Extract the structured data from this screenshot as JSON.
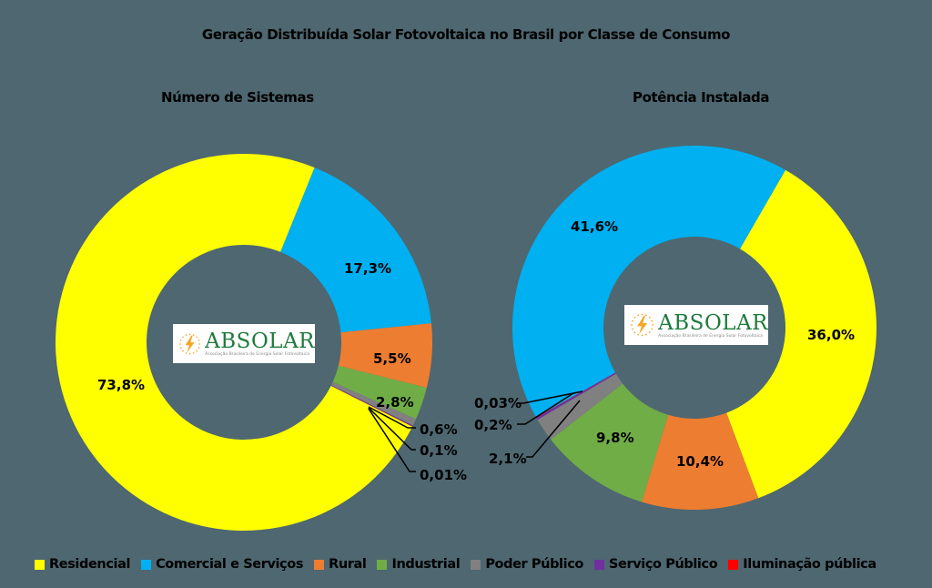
{
  "title": "Geração Distribuída Solar Fotovoltaica no Brasil por Classe de Consumo",
  "logo": {
    "brand": "ABSOLAR",
    "tagline": "Associação Brasileira de Energia Solar Fotovoltaica"
  },
  "background_color": "#4E6771",
  "categories": [
    "Residencial",
    "Comercial e Serviços",
    "Rural",
    "Industrial",
    "Poder Público",
    "Serviço Público",
    "Iluminação pública"
  ],
  "colors": {
    "Residencial": "#FFFF00",
    "Comercial e Serviços": "#00B0F0",
    "Rural": "#ED7D31",
    "Industrial": "#70AD47",
    "Poder Público": "#808080",
    "Serviço Público": "#7030A0",
    "Iluminação pública": "#FF0000"
  },
  "legend": {
    "position": "bottom",
    "items": [
      {
        "label": "Residencial",
        "color": "#FFFF00"
      },
      {
        "label": "Comercial e Serviços",
        "color": "#00B0F0"
      },
      {
        "label": "Rural",
        "color": "#ED7D31"
      },
      {
        "label": "Industrial",
        "color": "#70AD47"
      },
      {
        "label": "Poder Público",
        "color": "#808080"
      },
      {
        "label": "Serviço Público",
        "color": "#7030A0"
      },
      {
        "label": "Iluminação pública",
        "color": "#FF0000"
      }
    ]
  },
  "chart_data": [
    {
      "type": "pie",
      "subtype": "donut",
      "title": "Número de Sistemas",
      "categories": [
        "Residencial",
        "Comercial e Serviços",
        "Rural",
        "Industrial",
        "Poder Público",
        "Serviço Público",
        "Iluminação pública"
      ],
      "values": [
        73.8,
        17.3,
        5.5,
        2.8,
        0.6,
        0.1,
        0.01
      ],
      "labels": [
        "73,8%",
        "17,3%",
        "5,5%",
        "2,8%",
        "0,6%",
        "0,1%",
        "0,01%"
      ]
    },
    {
      "type": "pie",
      "subtype": "donut",
      "title": "Potência Instalada",
      "categories": [
        "Residencial",
        "Comercial e Serviços",
        "Rural",
        "Industrial",
        "Poder Público",
        "Serviço Público",
        "Iluminação pública"
      ],
      "values": [
        36.0,
        41.6,
        10.4,
        9.8,
        2.1,
        0.2,
        0.03
      ],
      "labels": [
        "36,0%",
        "41,6%",
        "10,4%",
        "9,8%",
        "2,1%",
        "0,2%",
        "0,03%"
      ]
    }
  ]
}
